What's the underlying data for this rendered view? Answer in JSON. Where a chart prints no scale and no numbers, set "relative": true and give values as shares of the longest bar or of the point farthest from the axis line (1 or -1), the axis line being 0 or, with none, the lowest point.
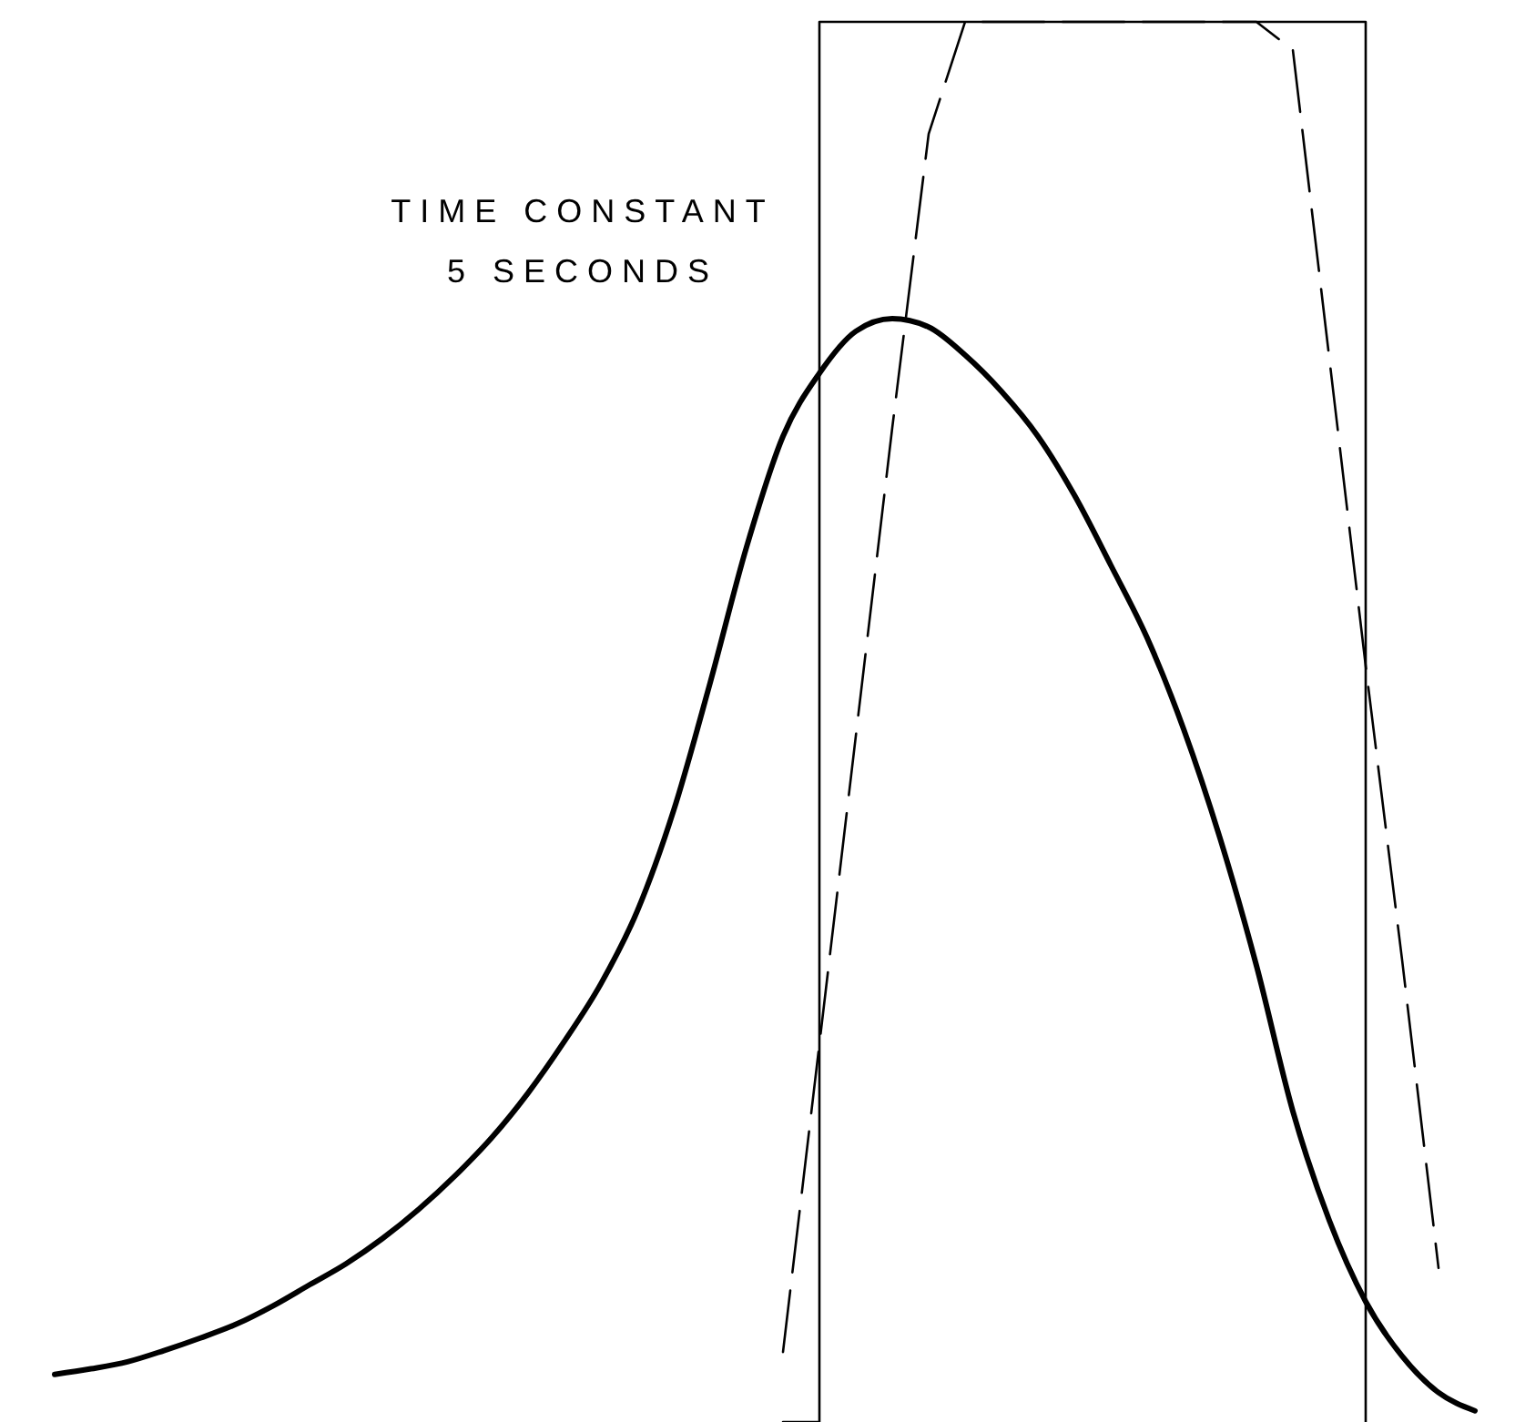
{
  "chart_data": {
    "type": "line",
    "relative": true,
    "categories": [
      null,
      null,
      null,
      null,
      null,
      null,
      null,
      null,
      null,
      null,
      null,
      null,
      null,
      null,
      null,
      null,
      null,
      null,
      null,
      null,
      null,
      null,
      null,
      null,
      null,
      null,
      null,
      null,
      null,
      null,
      null,
      null,
      null,
      null,
      null,
      null,
      null,
      null,
      null,
      null,
      null
    ],
    "annotations": [
      "TIME CONSTANT\n5 SECONDS"
    ],
    "series": [
      {
        "color": "#000000",
        "line_style": "solid",
        "values": [
          0.034,
          0.038,
          0.043,
          0.051,
          0.06,
          0.07,
          0.083,
          0.098,
          0.113,
          0.131,
          0.152,
          0.176,
          0.203,
          0.235,
          0.272,
          0.313,
          0.365,
          0.437,
          0.528,
          0.625,
          0.704,
          0.749,
          0.779,
          0.788,
          0.782,
          0.762,
          0.736,
          0.704,
          0.662,
          0.612,
          0.56,
          0.495,
          0.417,
          0.326,
          0.222,
          0.144,
          0.086,
          0.047,
          0.021,
          0.008,
          null
        ]
      },
      {
        "type": "step",
        "color": "#000000",
        "line_style": "solid",
        "values": [
          null,
          null,
          null,
          null,
          null,
          null,
          null,
          null,
          null,
          null,
          null,
          null,
          null,
          null,
          null,
          null,
          null,
          null,
          null,
          null,
          0,
          1,
          1,
          1,
          1,
          1,
          1,
          1,
          1,
          1,
          1,
          1,
          1,
          1,
          1,
          1,
          0,
          null,
          null,
          null,
          null
        ]
      },
      {
        "color": "#000000",
        "line_style": "dashed",
        "values": [
          null,
          null,
          null,
          null,
          null,
          null,
          null,
          null,
          null,
          null,
          null,
          null,
          null,
          null,
          null,
          null,
          null,
          null,
          null,
          null,
          0.05,
          0.27,
          0.49,
          0.71,
          0.92,
          1,
          1,
          1,
          1,
          1,
          1,
          1,
          1,
          1,
          0.98,
          0.76,
          0.54,
          0.33,
          0.11,
          null,
          null
        ]
      }
    ]
  }
}
